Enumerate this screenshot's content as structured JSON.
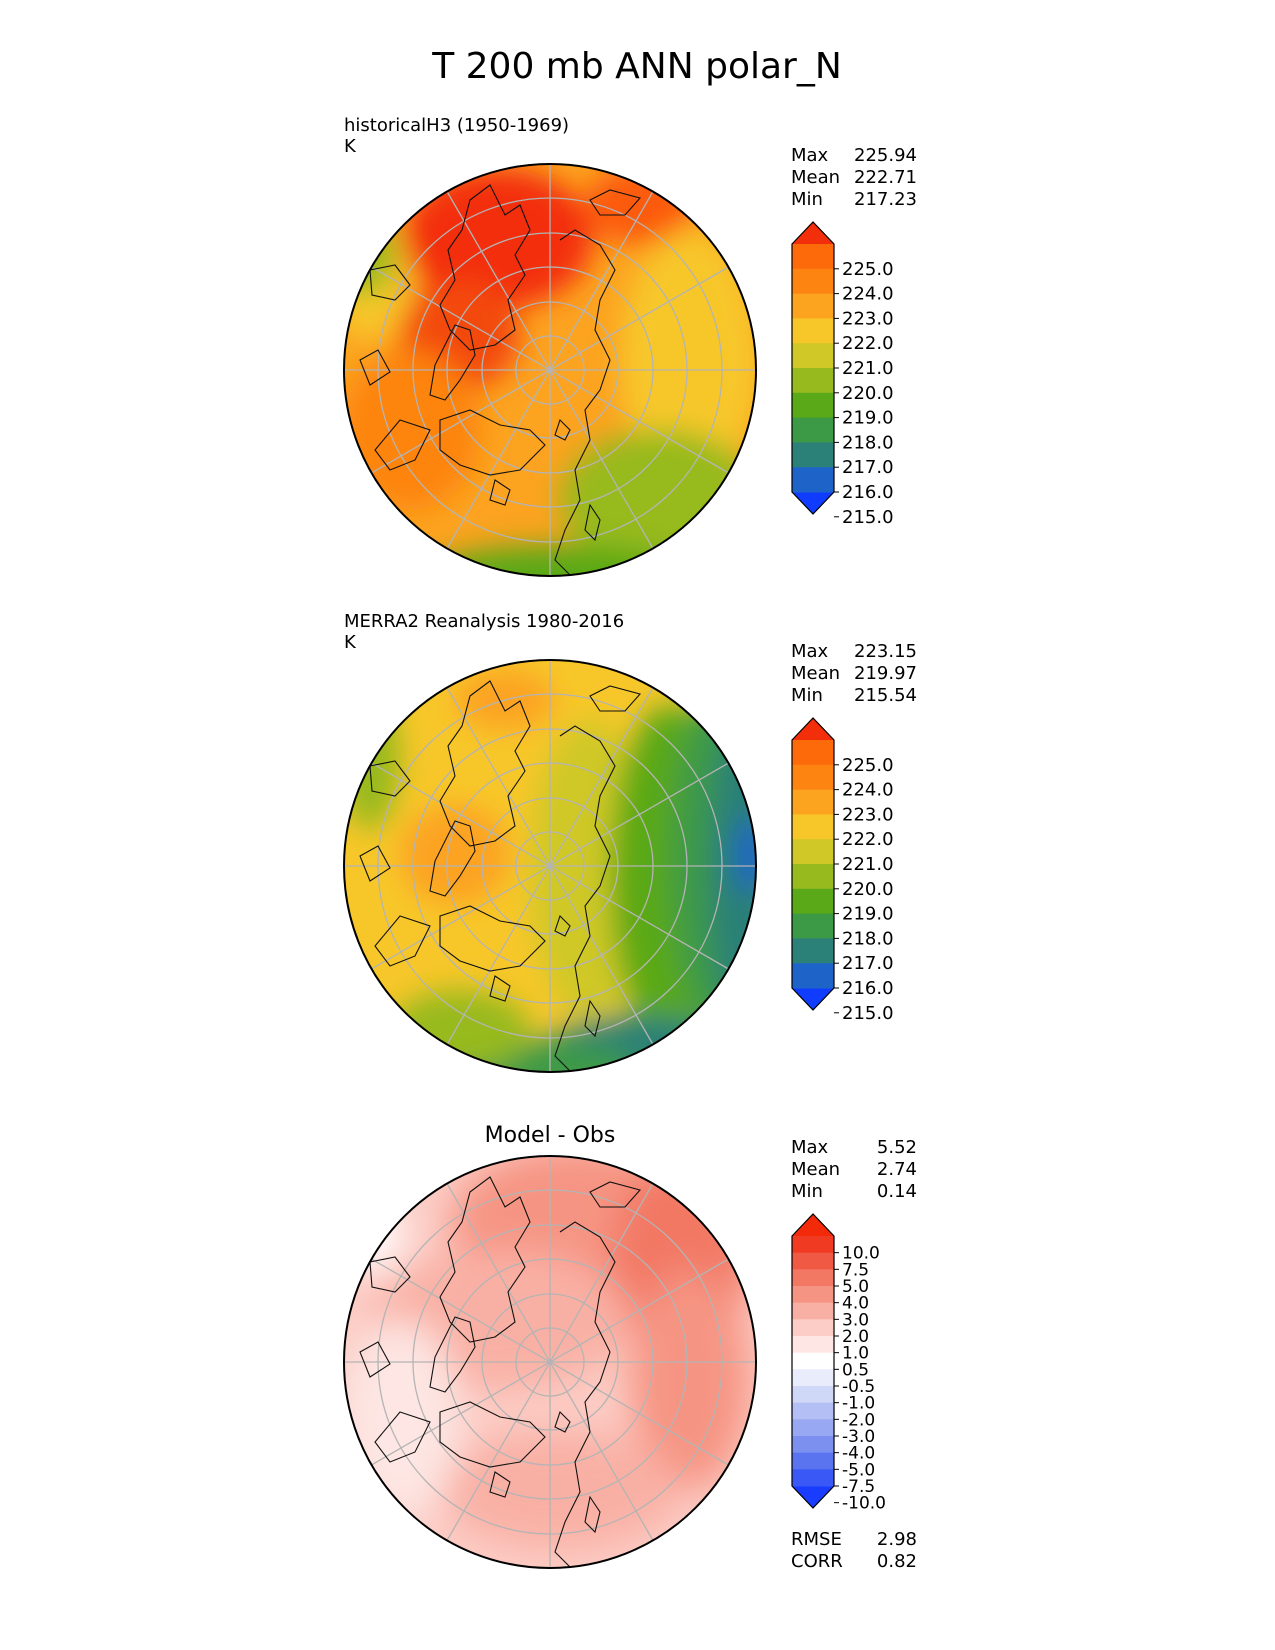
{
  "figure": {
    "title": "T 200 mb ANN polar_N"
  },
  "chart_data": [
    {
      "type": "heatmap",
      "projection": "north-polar-stereographic",
      "title": "historicalH3 (1950-1969)",
      "units": "K",
      "stats": [
        {
          "label": "Max",
          "value": "225.94"
        },
        {
          "label": "Mean",
          "value": "222.71"
        },
        {
          "label": "Min",
          "value": "217.23"
        }
      ],
      "colorbar": {
        "ticks": [
          "225.0",
          "224.0",
          "223.0",
          "222.0",
          "221.0",
          "220.0",
          "219.0",
          "218.0",
          "217.0",
          "216.0",
          "215.0"
        ],
        "colors": [
          "#0f3cff",
          "#1e64c8",
          "#2b8077",
          "#3c9a46",
          "#5aa919",
          "#97ba1e",
          "#cfc827",
          "#f7c72a",
          "#fca320",
          "#fd8410",
          "#fc6a0a",
          "#f32e0a"
        ]
      },
      "field": {
        "mean": 222.7,
        "min": 217.23,
        "max": 225.94
      }
    },
    {
      "type": "heatmap",
      "projection": "north-polar-stereographic",
      "title": "MERRA2 Reanalysis 1980-2016",
      "units": "K",
      "stats": [
        {
          "label": "Max",
          "value": "223.15"
        },
        {
          "label": "Mean",
          "value": "219.97"
        },
        {
          "label": "Min",
          "value": "215.54"
        }
      ],
      "colorbar": {
        "ticks": [
          "225.0",
          "224.0",
          "223.0",
          "222.0",
          "221.0",
          "220.0",
          "219.0",
          "218.0",
          "217.0",
          "216.0",
          "215.0"
        ],
        "colors": [
          "#0f3cff",
          "#1e64c8",
          "#2b8077",
          "#3c9a46",
          "#5aa919",
          "#97ba1e",
          "#cfc827",
          "#f7c72a",
          "#fca320",
          "#fd8410",
          "#fc6a0a",
          "#f32e0a"
        ]
      },
      "field": {
        "mean": 220.0,
        "min": 215.54,
        "max": 223.15
      }
    },
    {
      "type": "heatmap",
      "projection": "north-polar-stereographic",
      "title": "Model - Obs",
      "units": "",
      "stats": [
        {
          "label": "Max",
          "value": "5.52"
        },
        {
          "label": "Mean",
          "value": "2.74"
        },
        {
          "label": "Min",
          "value": "0.14"
        }
      ],
      "metrics": [
        {
          "label": "RMSE",
          "value": "2.98"
        },
        {
          "label": "CORR",
          "value": "0.82"
        }
      ],
      "colorbar": {
        "ticks": [
          "10.0",
          "7.5",
          "5.0",
          "4.0",
          "3.0",
          "2.0",
          "1.0",
          "0.5",
          "-0.5",
          "-1.0",
          "-2.0",
          "-3.0",
          "-4.0",
          "-5.0",
          "-7.5",
          "-10.0"
        ],
        "colors": [
          "#1a3cff",
          "#3a58f5",
          "#5a74f0",
          "#7c90f0",
          "#98a8f2",
          "#b4c0f5",
          "#d0d8f8",
          "#e8ecfb",
          "#ffffff",
          "#fde6e3",
          "#fccdc6",
          "#f9b0a4",
          "#f69483",
          "#f27864",
          "#f05a45",
          "#f03a22",
          "#f22a0a"
        ]
      },
      "field": {
        "mean": 2.74,
        "min": 0.14,
        "max": 5.52
      }
    }
  ]
}
